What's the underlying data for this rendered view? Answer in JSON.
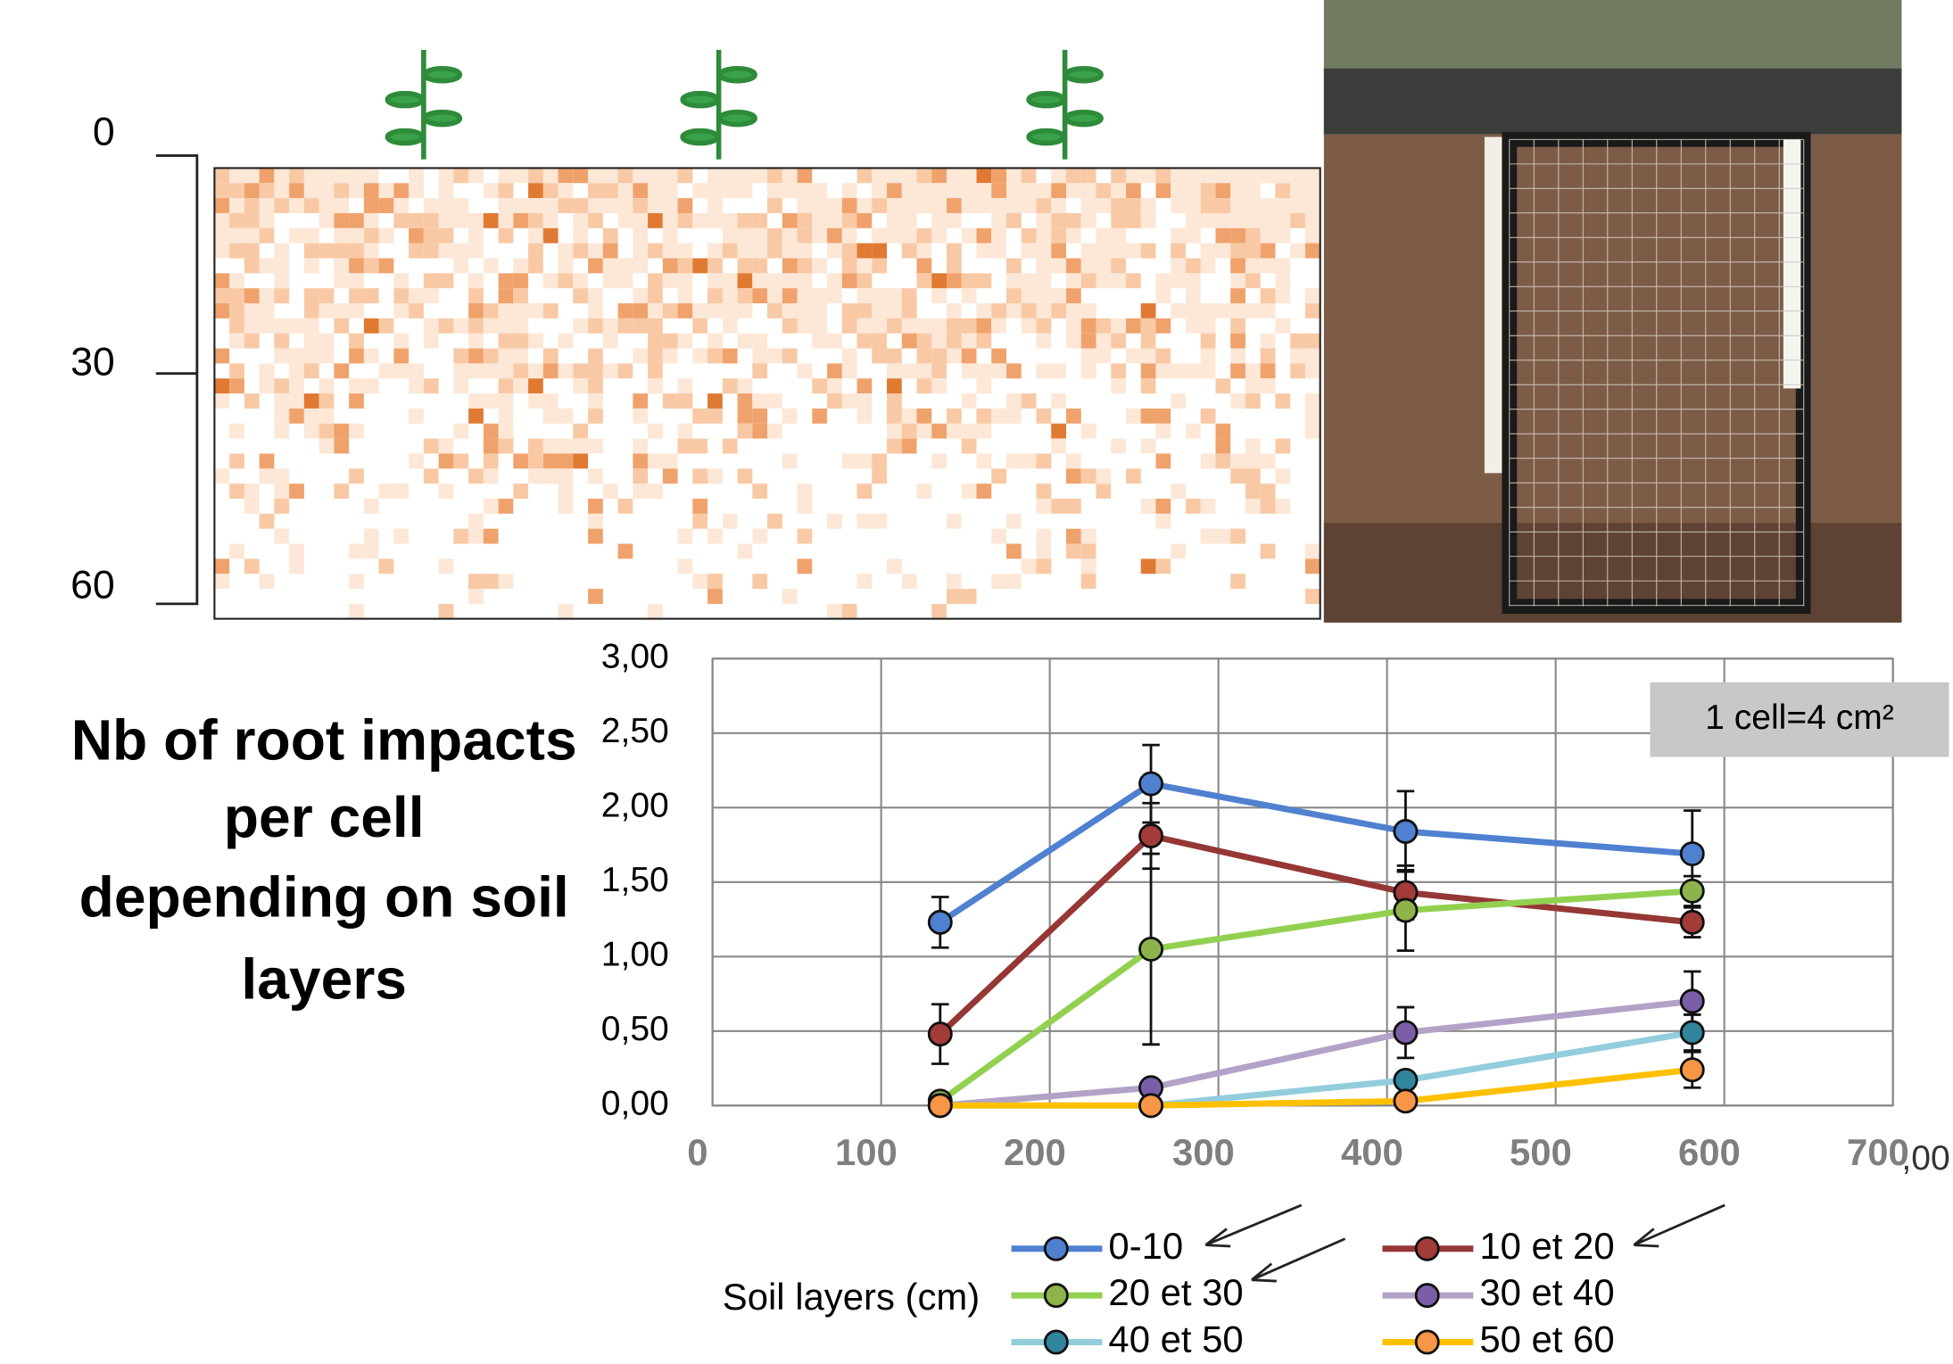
{
  "chart_data": {
    "type": "line",
    "title_lines": [
      "Nb of root impacts",
      "per cell",
      "depending on soil",
      "layers"
    ],
    "legend_title": "Soil layers (cm)",
    "annotations": [
      "1 cell=4 cm²",
      ",00"
    ],
    "xlim": [
      0,
      700
    ],
    "xticks": [
      0,
      100,
      200,
      300,
      400,
      500,
      600,
      700
    ],
    "ylim": [
      0,
      3
    ],
    "yticks": [
      {
        "value": 0,
        "label": "0,00"
      },
      {
        "value": 0.5,
        "label": "0,50"
      },
      {
        "value": 1,
        "label": "1,00"
      },
      {
        "value": 1.5,
        "label": "1,50"
      },
      {
        "value": 2,
        "label": "2,00"
      },
      {
        "value": 2.5,
        "label": "2,50"
      },
      {
        "value": 3,
        "label": "3,00"
      }
    ],
    "grid": true,
    "x": [
      135,
      260,
      411,
      581
    ],
    "series": [
      {
        "name": "0-10",
        "color": "#4f81d0",
        "marker": "#4f81d0",
        "values": [
          1.23,
          2.16,
          1.84,
          1.69
        ],
        "errors": [
          0.17,
          0.26,
          0.27,
          0.29
        ]
      },
      {
        "name": "10 et 20",
        "color": "#953735",
        "marker": "#a33b38",
        "values": [
          0.48,
          1.81,
          1.43,
          1.23
        ],
        "errors": [
          0.2,
          0.22,
          0.18,
          0.1
        ]
      },
      {
        "name": "20 et 30",
        "color": "#92d050",
        "marker": "#8db34a",
        "values": [
          0.03,
          1.05,
          1.31,
          1.44
        ],
        "errors": [
          0,
          0.64,
          0.27,
          0.1
        ]
      },
      {
        "name": "30 et 40",
        "color": "#b3a2c7",
        "marker": "#7b5ea7",
        "values": [
          0,
          0.12,
          0.49,
          0.7
        ],
        "errors": [
          0,
          0.05,
          0.17,
          0.2
        ]
      },
      {
        "name": "40 et 50",
        "color": "#92cddc",
        "marker": "#31859c",
        "values": [
          0,
          0,
          0.17,
          0.49
        ],
        "errors": [
          0,
          0,
          0.05,
          0.12
        ]
      },
      {
        "name": "50 et 60",
        "color": "#ffc000",
        "marker": "#f79646",
        "values": [
          0,
          0,
          0.03,
          0.24
        ],
        "errors": [
          0,
          0,
          0.02,
          0.12
        ]
      }
    ]
  },
  "root_map": {
    "depth_ticks": [
      0,
      30,
      60
    ]
  }
}
